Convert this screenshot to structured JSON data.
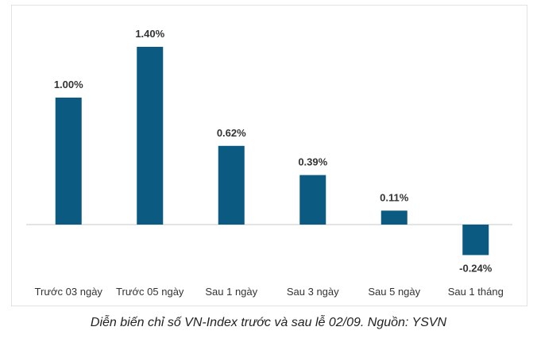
{
  "chart_data": {
    "type": "bar",
    "categories": [
      "Trước 03 ngày",
      "Trước 05 ngày",
      "Sau 1 ngày",
      "Sau 3 ngày",
      "Sau 5 ngày",
      "Sau 1 tháng"
    ],
    "values": [
      1.0,
      1.4,
      0.62,
      0.39,
      0.11,
      -0.24
    ],
    "data_labels": [
      "1.00%",
      "1.40%",
      "0.62%",
      "0.39%",
      "0.11%",
      "-0.24%"
    ],
    "ylim": [
      -0.4,
      1.6
    ],
    "grid": false,
    "bar_color": "#0a5a82",
    "baseline_color": "#c8c8c8"
  },
  "caption": "Diễn biến chỉ số VN-Index trước và sau lễ 02/09. Nguồn: YSVN"
}
